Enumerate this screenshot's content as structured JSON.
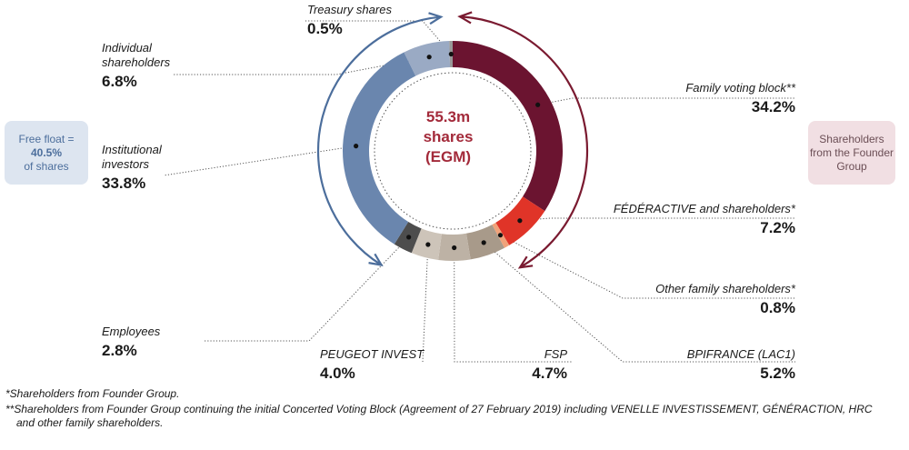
{
  "chart_data": {
    "type": "pie",
    "center": [
      "55.3m",
      "shares",
      "(EGM)"
    ],
    "slices": [
      {
        "name": "Family voting block**",
        "value": 34.2,
        "display": "34.2%",
        "color": "#6b1430"
      },
      {
        "name": "FÉDÉRACTIVE and shareholders*",
        "value": 7.2,
        "display": "7.2%",
        "color": "#e03428"
      },
      {
        "name": "Other family shareholders*",
        "value": 0.8,
        "display": "0.8%",
        "color": "#f0a27a"
      },
      {
        "name": "BPIFRANCE (LAC1)",
        "value": 5.2,
        "display": "5.2%",
        "color": "#a89a8a"
      },
      {
        "name": "FSP",
        "value": 4.7,
        "display": "4.7%",
        "color": "#bdb2a5"
      },
      {
        "name": "PEUGEOT INVEST",
        "value": 4.0,
        "display": "4.0%",
        "color": "#cdc4b9"
      },
      {
        "name": "Employees",
        "value": 2.8,
        "display": "2.8%",
        "color": "#4d4d4d"
      },
      {
        "name": "Institutional investors",
        "value": 33.8,
        "display": "33.8%",
        "color": "#6a86ae"
      },
      {
        "name": "Individual shareholders",
        "value": 6.8,
        "display": "6.8%",
        "color": "#9aaac4"
      },
      {
        "name": "Treasury shares",
        "value": 0.5,
        "display": "0.5%",
        "color": "#999999"
      }
    ]
  },
  "free_float": {
    "prefix": "Free float =",
    "value": "40.5%",
    "suffix": "of shares"
  },
  "founder_group": {
    "label": "Shareholders from the Founder Group"
  },
  "notes": [
    "*Shareholders from Founder Group.",
    "**Shareholders from Founder Group continuing the initial Concerted Voting Block (Agreement of 27 February 2019) including VENELLE INVESTISSEMENT, GÉNÉRACTION, HRC",
    "and other family shareholders."
  ],
  "colors": {
    "free_float_arrow": "#4c6e9c",
    "founder_arrow": "#7a1a30"
  }
}
